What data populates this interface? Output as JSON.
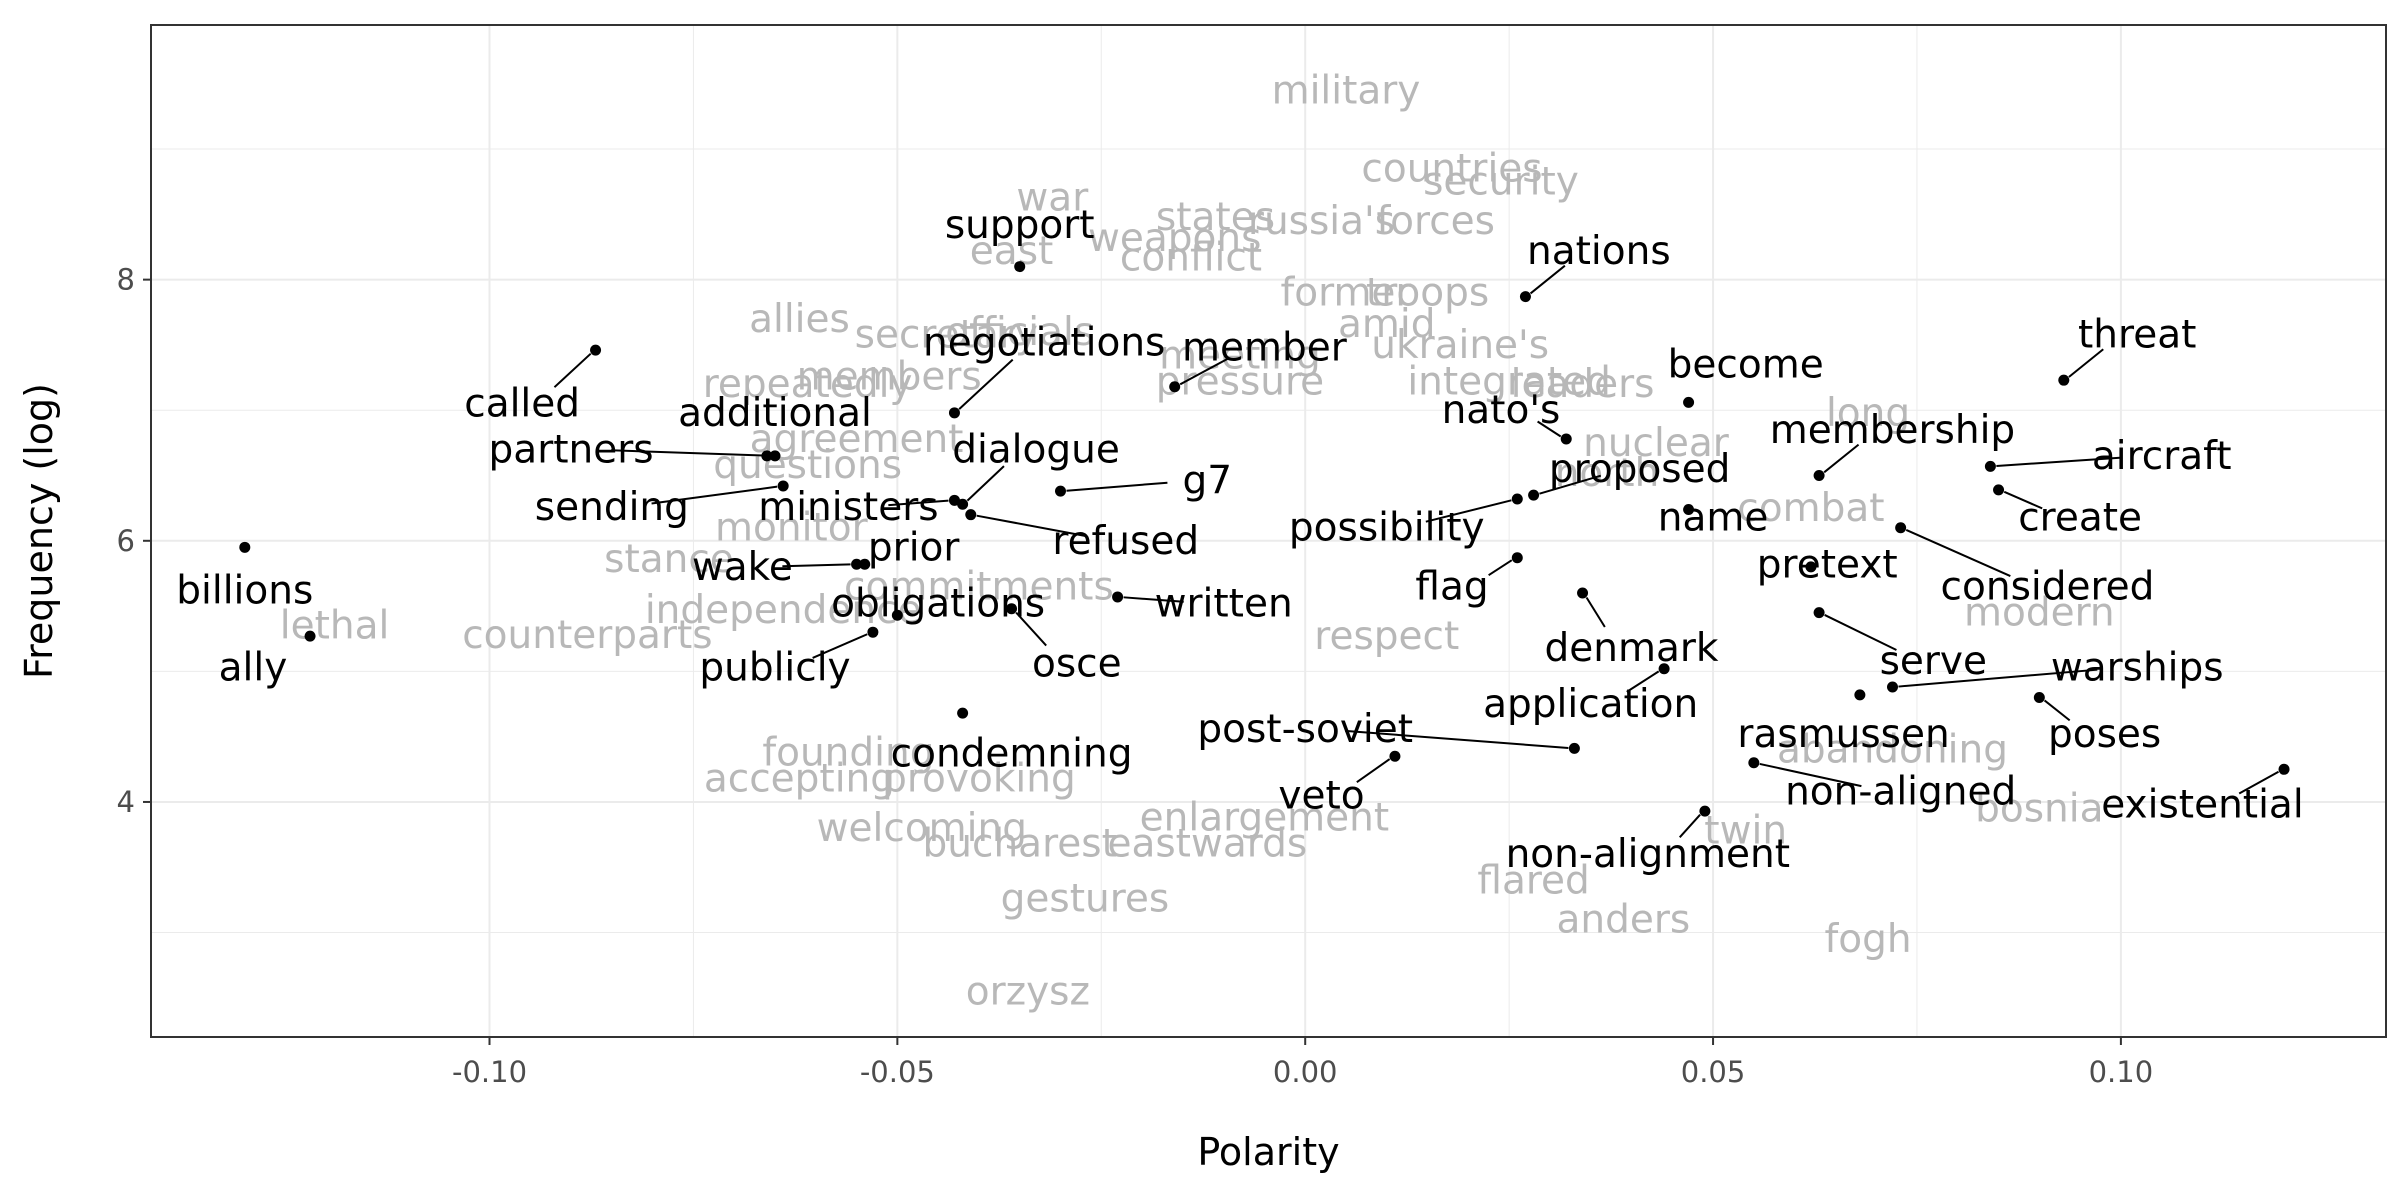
{
  "chart_data": {
    "type": "scatter",
    "xlabel": "Polarity",
    "ylabel": "Frequency (log)",
    "xlim": [
      -0.1415,
      0.1325
    ],
    "ylim": [
      2.2,
      9.95
    ],
    "x_ticks": [
      -0.1,
      -0.05,
      0.0,
      0.05,
      0.1
    ],
    "x_tick_labels": [
      "-0.10",
      "-0.05",
      "0.00",
      "0.05",
      "0.10"
    ],
    "y_ticks": [
      4,
      6,
      8
    ],
    "y_tick_labels": [
      "4",
      "6",
      "8"
    ],
    "grid": true,
    "colors": {
      "point": "#000000",
      "label": "#000000",
      "background_word": "#b8b8b8",
      "panel_border": "#333333",
      "gridline": "#ebebeb"
    },
    "highlighted_points": [
      {
        "word": "support",
        "x": -0.035,
        "y": 8.1,
        "label_x": -0.035,
        "label_y": 8.42
      },
      {
        "word": "nations",
        "x": 0.027,
        "y": 7.87,
        "label_x": 0.036,
        "label_y": 8.22
      },
      {
        "word": "threat",
        "x": 0.093,
        "y": 7.23,
        "label_x": 0.102,
        "label_y": 7.58
      },
      {
        "word": "called",
        "x": -0.087,
        "y": 7.46,
        "label_x": -0.096,
        "label_y": 7.05
      },
      {
        "word": "negotiations",
        "x": -0.043,
        "y": 6.98,
        "label_x": -0.032,
        "label_y": 7.52
      },
      {
        "word": "member",
        "x": -0.016,
        "y": 7.18,
        "label_x": -0.005,
        "label_y": 7.48
      },
      {
        "word": "become",
        "x": 0.047,
        "y": 7.06,
        "label_x": 0.054,
        "label_y": 7.35
      },
      {
        "word": "additional",
        "x": -0.066,
        "y": 6.65,
        "label_x": -0.065,
        "label_y": 6.98
      },
      {
        "word": "nato's",
        "x": 0.032,
        "y": 6.78,
        "label_x": 0.024,
        "label_y": 7.0
      },
      {
        "word": "partners",
        "x": -0.065,
        "y": 6.65,
        "label_x": -0.09,
        "label_y": 6.7
      },
      {
        "word": "membership",
        "x": 0.063,
        "y": 6.5,
        "label_x": 0.072,
        "label_y": 6.85
      },
      {
        "word": "aircraft",
        "x": 0.084,
        "y": 6.57,
        "label_x": 0.105,
        "label_y": 6.65
      },
      {
        "word": "dialogue",
        "x": -0.042,
        "y": 6.28,
        "label_x": -0.033,
        "label_y": 6.7
      },
      {
        "word": "proposed",
        "x": 0.028,
        "y": 6.35,
        "label_x": 0.041,
        "label_y": 6.55
      },
      {
        "word": "sending",
        "x": -0.064,
        "y": 6.42,
        "label_x": -0.085,
        "label_y": 6.26
      },
      {
        "word": "ministers",
        "x": -0.043,
        "y": 6.31,
        "label_x": -0.056,
        "label_y": 6.26
      },
      {
        "word": "g7",
        "x": -0.03,
        "y": 6.38,
        "label_x": -0.012,
        "label_y": 6.46
      },
      {
        "word": "create",
        "x": 0.085,
        "y": 6.39,
        "label_x": 0.095,
        "label_y": 6.18
      },
      {
        "word": "name",
        "x": 0.047,
        "y": 6.24,
        "label_x": 0.05,
        "label_y": 6.18
      },
      {
        "word": "possibility",
        "x": 0.026,
        "y": 6.32,
        "label_x": 0.01,
        "label_y": 6.1
      },
      {
        "word": "prior",
        "x": -0.054,
        "y": 5.82,
        "label_x": -0.048,
        "label_y": 5.95
      },
      {
        "word": "refused",
        "x": -0.041,
        "y": 6.2,
        "label_x": -0.022,
        "label_y": 6.0
      },
      {
        "word": "billions",
        "x": -0.13,
        "y": 5.95,
        "label_x": -0.13,
        "label_y": 5.62
      },
      {
        "word": "wake",
        "x": -0.055,
        "y": 5.82,
        "label_x": -0.069,
        "label_y": 5.8
      },
      {
        "word": "pretext",
        "x": 0.062,
        "y": 5.8,
        "label_x": 0.064,
        "label_y": 5.82
      },
      {
        "word": "considered",
        "x": 0.073,
        "y": 6.1,
        "label_x": 0.091,
        "label_y": 5.65
      },
      {
        "word": "flag",
        "x": 0.026,
        "y": 5.87,
        "label_x": 0.018,
        "label_y": 5.65
      },
      {
        "word": "obligations",
        "x": -0.05,
        "y": 5.43,
        "label_x": -0.045,
        "label_y": 5.52
      },
      {
        "word": "written",
        "x": -0.023,
        "y": 5.57,
        "label_x": -0.01,
        "label_y": 5.52
      },
      {
        "word": "denmark",
        "x": 0.034,
        "y": 5.6,
        "label_x": 0.04,
        "label_y": 5.18
      },
      {
        "word": "serve",
        "x": 0.063,
        "y": 5.45,
        "label_x": 0.077,
        "label_y": 5.08
      },
      {
        "word": "ally",
        "x": -0.122,
        "y": 5.27,
        "label_x": -0.129,
        "label_y": 5.03
      },
      {
        "word": "publicly",
        "x": -0.053,
        "y": 5.3,
        "label_x": -0.065,
        "label_y": 5.03
      },
      {
        "word": "osce",
        "x": -0.036,
        "y": 5.48,
        "label_x": -0.028,
        "label_y": 5.06
      },
      {
        "word": "warships",
        "x": 0.072,
        "y": 4.88,
        "label_x": 0.102,
        "label_y": 5.03
      },
      {
        "word": "application",
        "x": 0.044,
        "y": 5.02,
        "label_x": 0.035,
        "label_y": 4.75
      },
      {
        "word": "rasmussen",
        "x": 0.068,
        "y": 4.82,
        "label_x": 0.066,
        "label_y": 4.52
      },
      {
        "word": "poses",
        "x": 0.09,
        "y": 4.8,
        "label_x": 0.098,
        "label_y": 4.52
      },
      {
        "word": "post-soviet",
        "x": 0.033,
        "y": 4.41,
        "label_x": 0.0,
        "label_y": 4.56
      },
      {
        "word": "condemning",
        "x": -0.042,
        "y": 4.68,
        "label_x": -0.036,
        "label_y": 4.37
      },
      {
        "word": "veto",
        "x": 0.011,
        "y": 4.35,
        "label_x": 0.002,
        "label_y": 4.05
      },
      {
        "word": "non-aligned",
        "x": 0.055,
        "y": 4.3,
        "label_x": 0.073,
        "label_y": 4.08
      },
      {
        "word": "existential",
        "x": 0.12,
        "y": 4.25,
        "label_x": 0.11,
        "label_y": 3.98
      },
      {
        "word": "non-alignment",
        "x": 0.049,
        "y": 3.93,
        "label_x": 0.042,
        "label_y": 3.6
      }
    ],
    "background_words": [
      {
        "word": "military",
        "x": 0.005,
        "y": 9.45
      },
      {
        "word": "countries",
        "x": 0.018,
        "y": 8.85
      },
      {
        "word": "security",
        "x": 0.024,
        "y": 8.75
      },
      {
        "word": "war",
        "x": -0.031,
        "y": 8.63
      },
      {
        "word": "states",
        "x": -0.011,
        "y": 8.48
      },
      {
        "word": "russia's",
        "x": 0.002,
        "y": 8.45
      },
      {
        "word": "forces",
        "x": 0.016,
        "y": 8.45
      },
      {
        "word": "weapons",
        "x": -0.016,
        "y": 8.32
      },
      {
        "word": "conflict",
        "x": -0.014,
        "y": 8.17
      },
      {
        "word": "east",
        "x": -0.036,
        "y": 8.22
      },
      {
        "word": "former",
        "x": 0.005,
        "y": 7.9
      },
      {
        "word": "troops",
        "x": 0.015,
        "y": 7.9
      },
      {
        "word": "amid",
        "x": 0.01,
        "y": 7.66
      },
      {
        "word": "ukraine's",
        "x": 0.019,
        "y": 7.5
      },
      {
        "word": "allies",
        "x": -0.062,
        "y": 7.7
      },
      {
        "word": "secretary",
        "x": -0.044,
        "y": 7.58
      },
      {
        "word": "officials",
        "x": -0.035,
        "y": 7.6
      },
      {
        "word": "meeting",
        "x": -0.008,
        "y": 7.42
      },
      {
        "word": "members",
        "x": -0.051,
        "y": 7.26
      },
      {
        "word": "repeatedly",
        "x": -0.061,
        "y": 7.2
      },
      {
        "word": "pressure",
        "x": -0.008,
        "y": 7.22
      },
      {
        "word": "integrated",
        "x": 0.025,
        "y": 7.22
      },
      {
        "word": "leaders",
        "x": 0.034,
        "y": 7.2
      },
      {
        "word": "long",
        "x": 0.069,
        "y": 6.98
      },
      {
        "word": "nuclear",
        "x": 0.043,
        "y": 6.75
      },
      {
        "word": "north",
        "x": 0.037,
        "y": 6.52
      },
      {
        "word": "combat",
        "x": 0.062,
        "y": 6.25
      },
      {
        "word": "questions",
        "x": -0.061,
        "y": 6.58
      },
      {
        "word": "agreement",
        "x": -0.055,
        "y": 6.78
      },
      {
        "word": "monitor",
        "x": -0.063,
        "y": 6.1
      },
      {
        "word": "stance",
        "x": -0.078,
        "y": 5.86
      },
      {
        "word": "lethal",
        "x": -0.119,
        "y": 5.35
      },
      {
        "word": "counterparts",
        "x": -0.088,
        "y": 5.28
      },
      {
        "word": "independence",
        "x": -0.064,
        "y": 5.47
      },
      {
        "word": "commitments",
        "x": -0.04,
        "y": 5.65
      },
      {
        "word": "modern",
        "x": 0.09,
        "y": 5.45
      },
      {
        "word": "respect",
        "x": 0.01,
        "y": 5.27
      },
      {
        "word": "founding",
        "x": -0.056,
        "y": 4.38
      },
      {
        "word": "accepting",
        "x": -0.062,
        "y": 4.18
      },
      {
        "word": "provoking",
        "x": -0.04,
        "y": 4.18
      },
      {
        "word": "abandoning",
        "x": 0.072,
        "y": 4.4
      },
      {
        "word": "bosnia",
        "x": 0.09,
        "y": 3.95
      },
      {
        "word": "welcoming",
        "x": -0.047,
        "y": 3.8
      },
      {
        "word": "bucharest",
        "x": -0.035,
        "y": 3.68
      },
      {
        "word": "eastwards",
        "x": -0.012,
        "y": 3.68
      },
      {
        "word": "enlargement",
        "x": -0.005,
        "y": 3.88
      },
      {
        "word": "twin",
        "x": 0.054,
        "y": 3.78
      },
      {
        "word": "flared",
        "x": 0.028,
        "y": 3.4
      },
      {
        "word": "anders",
        "x": 0.039,
        "y": 3.1
      },
      {
        "word": "gestures",
        "x": -0.027,
        "y": 3.26
      },
      {
        "word": "fogh",
        "x": 0.069,
        "y": 2.95
      },
      {
        "word": "orzysz",
        "x": -0.034,
        "y": 2.55
      }
    ]
  }
}
